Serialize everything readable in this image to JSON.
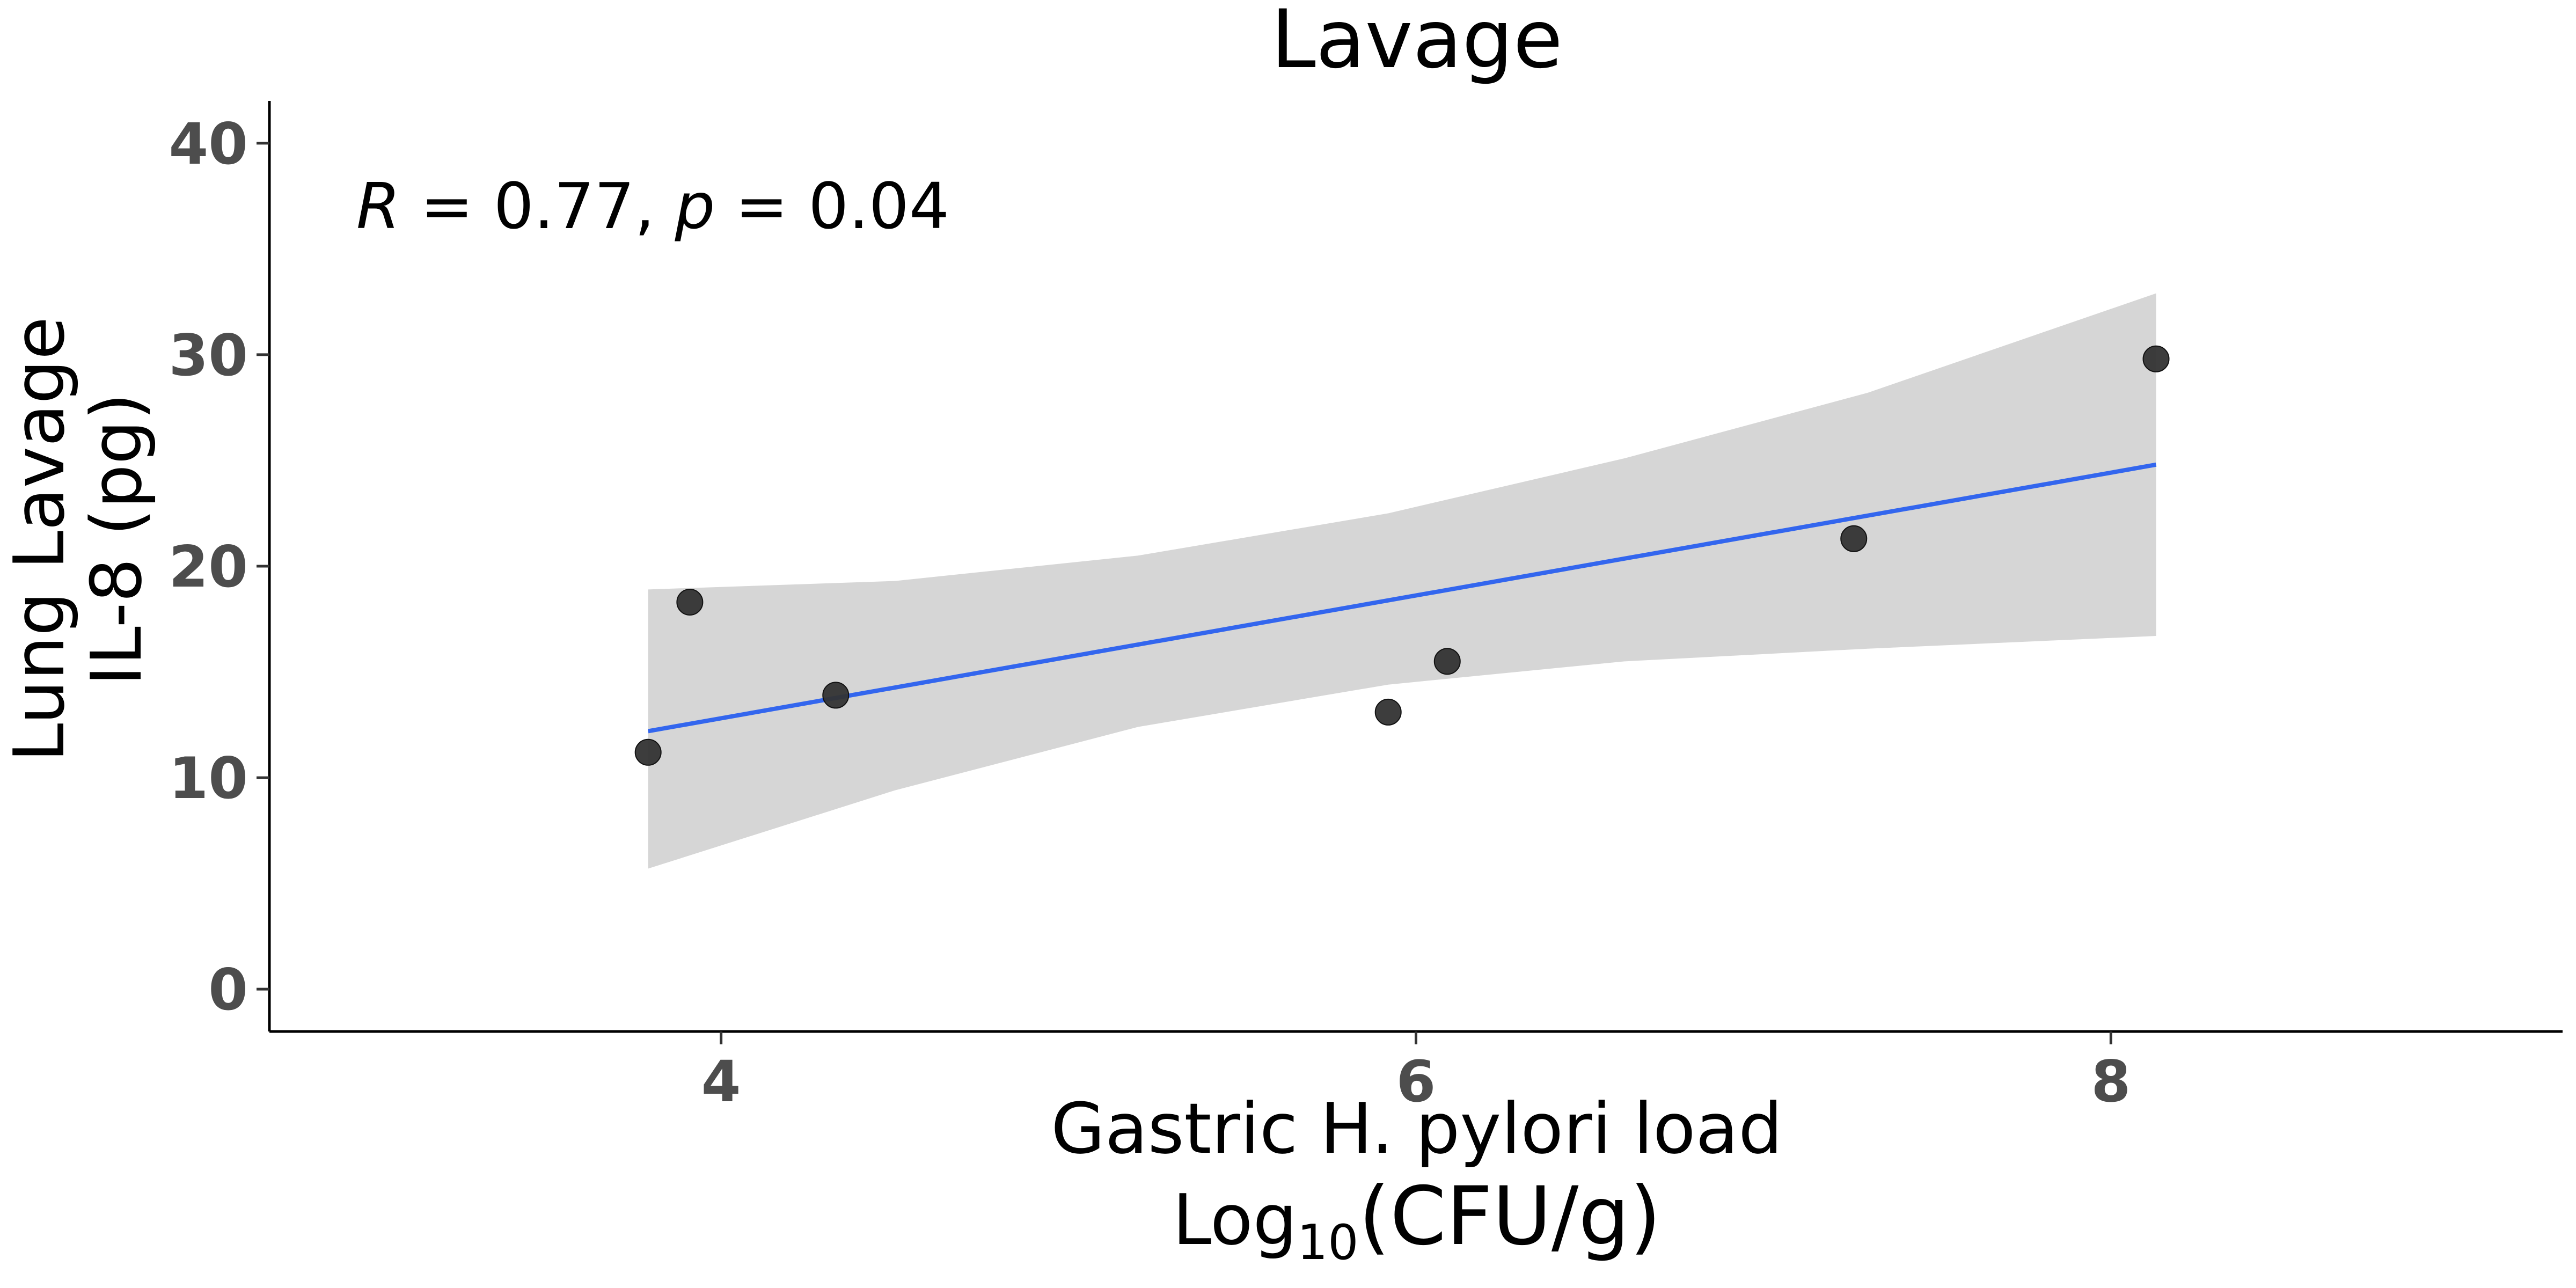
{
  "chart_data": {
    "type": "scatter",
    "title": "Lavage",
    "xlabel_line1": "Gastric H. pylori load",
    "xlabel_line2_prefix": "Log",
    "xlabel_line2_subscript": "10",
    "xlabel_line2_suffix": "(CFU/g)",
    "ylabel_line1": "Lung Lavage",
    "ylabel_line2": "IL-8 (pg)",
    "xlim": [
      2.7,
      9.3
    ],
    "ylim": [
      -2,
      42
    ],
    "xticks": [
      4,
      6,
      8
    ],
    "yticks": [
      0,
      10,
      20,
      30,
      40
    ],
    "points": [
      {
        "x": 3.79,
        "y": 11.2
      },
      {
        "x": 3.91,
        "y": 18.3
      },
      {
        "x": 4.33,
        "y": 13.9
      },
      {
        "x": 5.92,
        "y": 13.1
      },
      {
        "x": 6.09,
        "y": 15.5
      },
      {
        "x": 7.26,
        "y": 21.3
      },
      {
        "x": 8.13,
        "y": 29.8
      }
    ],
    "fit_line": {
      "x": [
        3.79,
        8.13
      ],
      "y": [
        12.2,
        24.8
      ],
      "color": "#3366ee"
    },
    "confidence_band": {
      "x": [
        3.79,
        4.5,
        5.2,
        5.92,
        6.6,
        7.3,
        8.13
      ],
      "lower": [
        5.7,
        9.4,
        12.4,
        14.4,
        15.5,
        16.1,
        16.7
      ],
      "upper": [
        18.9,
        19.3,
        20.5,
        22.5,
        25.1,
        28.2,
        32.9
      ],
      "color": "#d6d6d6"
    },
    "point_color": "#333333",
    "annotation": {
      "r_symbol": "R",
      "r_text": " = 0.77, ",
      "p_symbol": "p",
      "p_text": " = 0.04",
      "x": 2.95,
      "y": 37
    },
    "grid": false,
    "legend": "none"
  }
}
